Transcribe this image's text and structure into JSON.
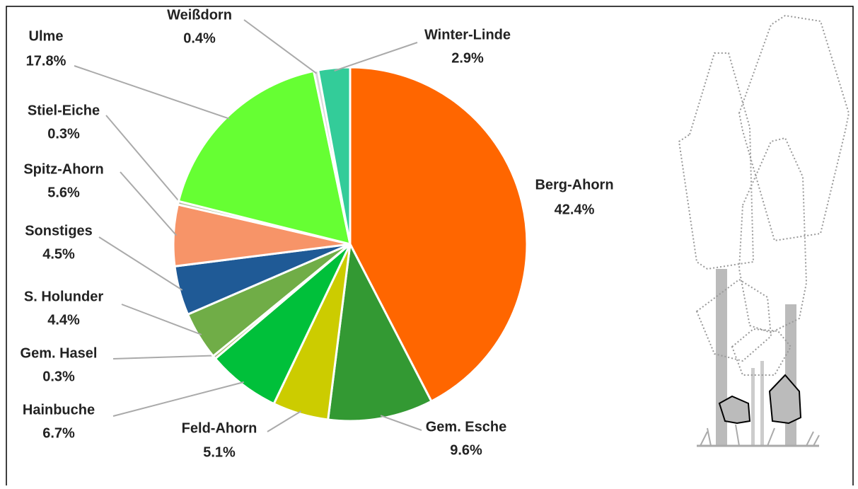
{
  "chart_data": {
    "type": "pie",
    "categories": [
      "Berg-Ahorn",
      "Gem. Esche",
      "Feld-Ahorn",
      "Hainbuche",
      "Gem. Hasel",
      "S. Holunder",
      "Sonstiges",
      "Spitz-Ahorn",
      "Stiel-Eiche",
      "Ulme",
      "Weißdorn",
      "Winter-Linde"
    ],
    "values": [
      42.4,
      9.6,
      5.1,
      6.7,
      0.3,
      4.4,
      4.5,
      5.6,
      0.3,
      17.8,
      0.4,
      2.9
    ],
    "value_labels": [
      "42.4%",
      "9.6%",
      "5.1%",
      "6.7%",
      "0.3%",
      "4.4%",
      "4.5%",
      "5.6%",
      "0.3%",
      "17.8%",
      "0.4%",
      "2.9%"
    ],
    "colors": [
      "#ff6600",
      "#339933",
      "#cccc00",
      "#00c03a",
      "#a5c26a",
      "#70ad47",
      "#1f5a96",
      "#f79468",
      "#b4c7a0",
      "#66ff33",
      "#d9d9d9",
      "#33cc99"
    ]
  }
}
